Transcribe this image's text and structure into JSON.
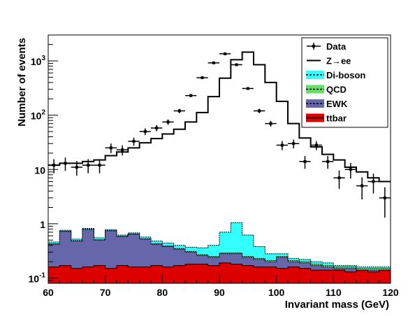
{
  "chart_data": {
    "type": "histogram",
    "xlabel": "Invariant mass (GeV)",
    "ylabel": "Number of events",
    "xlim": [
      60,
      120
    ],
    "ylim": [
      0.08,
      3000
    ],
    "yscale": "log",
    "bin_width": 2,
    "bin_edges_start": 60,
    "x_ticks": [
      60,
      70,
      80,
      90,
      100,
      110,
      120
    ],
    "y_ticks": [
      {
        "value": 0.1,
        "base": "10",
        "exp": "-1"
      },
      {
        "value": 1,
        "label": "1"
      },
      {
        "value": 10,
        "label": "10"
      },
      {
        "value": 100,
        "base": "10",
        "exp": "2"
      },
      {
        "value": 1000,
        "base": "10",
        "exp": "3"
      }
    ],
    "legend": {
      "position": "top-right",
      "entries": [
        {
          "label": "Data",
          "style": "marker",
          "color": "#000000"
        },
        {
          "label": "Z→ee",
          "style": "line",
          "color": "#000000"
        },
        {
          "label": "Di-boson",
          "style": "fill",
          "color": "#33ffff"
        },
        {
          "label": "QCD",
          "style": "fill",
          "color": "#66dd66"
        },
        {
          "label": "EWK",
          "style": "fill",
          "color": "#6666aa"
        },
        {
          "label": "ttbar",
          "style": "fill",
          "color": "#dd0000"
        }
      ]
    },
    "series": [
      {
        "name": "ttbar",
        "color": "#dd0000",
        "values": [
          0.16,
          0.17,
          0.15,
          0.16,
          0.17,
          0.15,
          0.17,
          0.16,
          0.16,
          0.17,
          0.16,
          0.17,
          0.18,
          0.18,
          0.17,
          0.19,
          0.18,
          0.17,
          0.16,
          0.16,
          0.15,
          0.16,
          0.15,
          0.14,
          0.14,
          0.14,
          0.13,
          0.14,
          0.13,
          0.14
        ]
      },
      {
        "name": "EWK",
        "color": "#6666aa",
        "values": [
          0.42,
          0.72,
          0.48,
          0.78,
          0.5,
          0.74,
          0.58,
          0.64,
          0.52,
          0.42,
          0.38,
          0.34,
          0.3,
          0.26,
          0.24,
          0.28,
          0.28,
          0.24,
          0.22,
          0.2,
          0.24,
          0.2,
          0.19,
          0.17,
          0.16,
          0.15,
          0.15,
          0.14,
          0.14,
          0.14
        ]
      },
      {
        "name": "QCD",
        "color": "#66dd66",
        "values": [
          0.43,
          0.73,
          0.49,
          0.79,
          0.51,
          0.75,
          0.59,
          0.65,
          0.53,
          0.43,
          0.39,
          0.35,
          0.31,
          0.27,
          0.25,
          0.29,
          0.29,
          0.25,
          0.23,
          0.21,
          0.25,
          0.21,
          0.2,
          0.18,
          0.17,
          0.16,
          0.16,
          0.15,
          0.15,
          0.15
        ]
      },
      {
        "name": "Di-boson",
        "color": "#33ffff",
        "values": [
          0.46,
          0.76,
          0.52,
          0.82,
          0.55,
          0.78,
          0.62,
          0.68,
          0.57,
          0.48,
          0.44,
          0.4,
          0.37,
          0.36,
          0.4,
          0.7,
          1.05,
          0.62,
          0.38,
          0.28,
          0.28,
          0.23,
          0.22,
          0.2,
          0.19,
          0.17,
          0.17,
          0.16,
          0.16,
          0.16
        ]
      },
      {
        "name": "Z→ee",
        "color": "#000000",
        "values": [
          12,
          13,
          13,
          14,
          15,
          18,
          21,
          25,
          31,
          37,
          45,
          55,
          75,
          112,
          220,
          480,
          1050,
          1450,
          850,
          400,
          180,
          70,
          38,
          26,
          19,
          15,
          11,
          9,
          7,
          6
        ]
      }
    ],
    "data": {
      "name": "Data",
      "values": [
        12,
        13,
        11,
        12,
        12,
        25,
        23,
        33,
        50,
        58,
        75,
        120,
        230,
        490,
        920,
        1350,
        850,
        310,
        120,
        70,
        28,
        30,
        14,
        28,
        14,
        7,
        10,
        5,
        6,
        3
      ],
      "errors": [
        3.5,
        3.6,
        3.3,
        3.5,
        3.5,
        5,
        4.8,
        5.7,
        7.1,
        7.6,
        8.7,
        11,
        15.2,
        22,
        30.3,
        36.7,
        29.2,
        17.6,
        11,
        8.4,
        5.3,
        5.5,
        3.7,
        5.3,
        3.7,
        2.6,
        3.2,
        2.2,
        2.4,
        1.7
      ]
    }
  }
}
